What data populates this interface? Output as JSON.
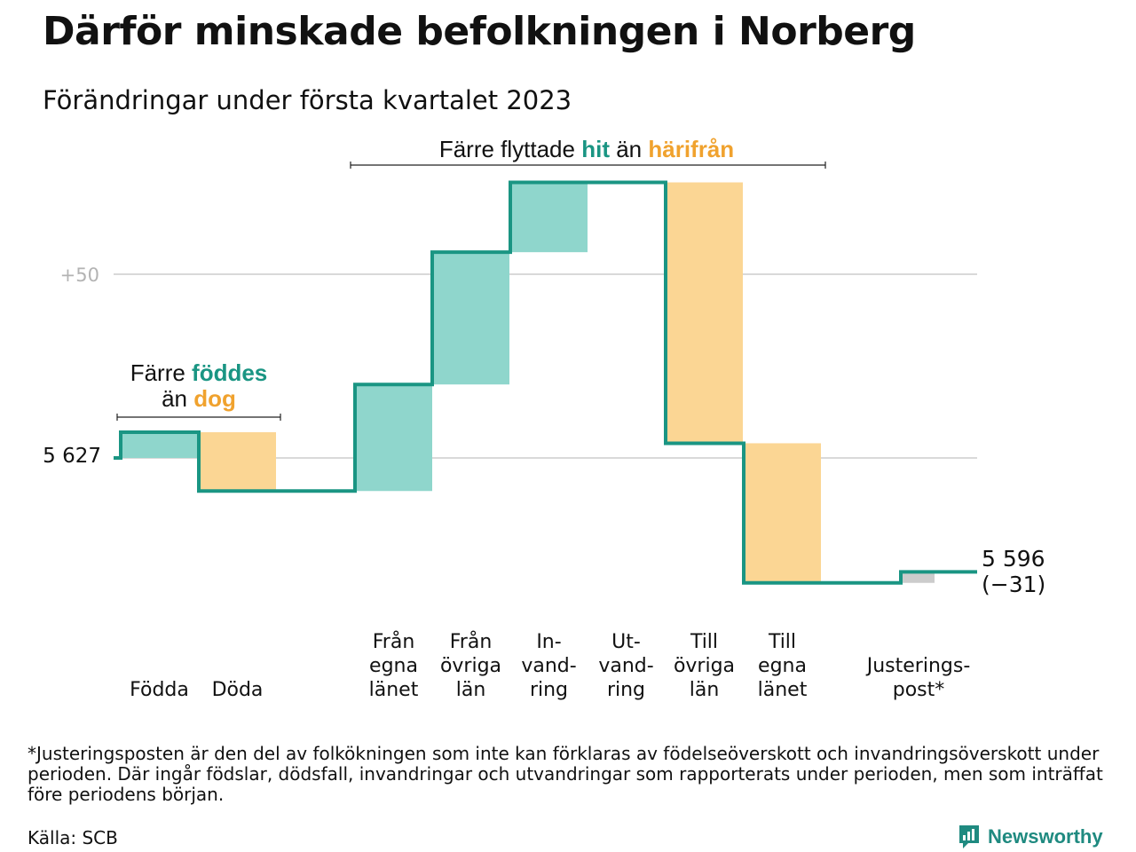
{
  "title": "Därför minskade befolkningen i Norberg",
  "subtitle": "Förändringar under första kvartalet 2023",
  "chart_data": {
    "type": "waterfall",
    "baseline": 5627,
    "baseline_label": "5 627",
    "end_value": 5596,
    "end_label_line1": "5 596",
    "end_label_line2": "(−31)",
    "gridline_label": "+50",
    "colors": {
      "increase": "#8fd6cc",
      "decrease": "#fbd694",
      "adjustment": "#cccccc",
      "step_line": "#1a9583",
      "grid": "#d9d9d9",
      "teal_text": "#1a9583",
      "orange_text": "#f0a22e"
    },
    "steps": [
      {
        "id": "fodda",
        "label_lines": [
          "Födda"
        ],
        "change": 7
      },
      {
        "id": "doda",
        "label_lines": [
          "Döda"
        ],
        "change": -16
      },
      {
        "id": "fran-egna-lanet",
        "label_lines": [
          "Från",
          "egna",
          "länet"
        ],
        "change": 29
      },
      {
        "id": "fran-ovriga-lan",
        "label_lines": [
          "Från",
          "övriga",
          "län"
        ],
        "change": 36
      },
      {
        "id": "invandring",
        "label_lines": [
          "In-",
          "vand-",
          "ring"
        ],
        "change": 19
      },
      {
        "id": "utvandring",
        "label_lines": [
          "Ut-",
          "vand-",
          "ring"
        ],
        "change": 0
      },
      {
        "id": "till-ovriga-lan",
        "label_lines": [
          "Till",
          "övriga",
          "län"
        ],
        "change": -71
      },
      {
        "id": "till-egna-lanet",
        "label_lines": [
          "Till",
          "egna",
          "länet"
        ],
        "change": -38
      },
      {
        "id": "justeringspost",
        "label_lines": [
          "Justerings-",
          "post*"
        ],
        "change": 3
      }
    ],
    "annotations": {
      "births": {
        "line1_a": "Färre ",
        "line1_b": "föddes",
        "line2_a": "än ",
        "line2_b": "dog"
      },
      "migration": {
        "a": "Färre flyttade ",
        "b": "hit",
        "c": " än ",
        "d": "härifrån"
      }
    }
  },
  "footnote": "*Justeringsposten är den del av folkökningen som inte kan förklaras av födelseöverskott och invandringsöverskott under perioden. Där ingår födslar, dödsfall, invandringar och utvandringar som rapporterats under perioden, men som inträffat före periodens början.",
  "source": "Källa: SCB",
  "brand": "Newsworthy"
}
